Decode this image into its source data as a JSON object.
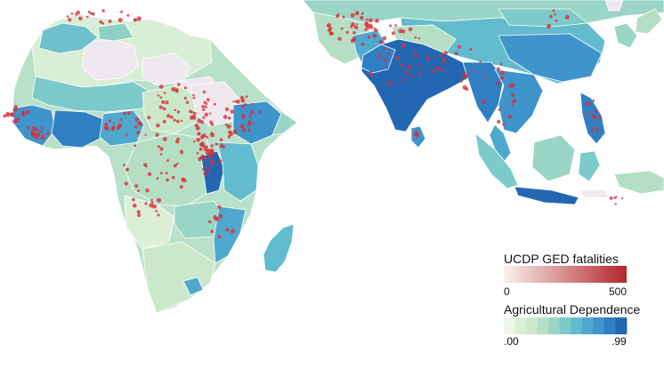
{
  "legend": {
    "fatalities": {
      "title": "UCDP GED fatalities",
      "min_label": "0",
      "max_label": "500",
      "gradient_from": "#fbf1ee",
      "gradient_to": "#b2262c"
    },
    "agri": {
      "title": "Agricultural Dependence",
      "min_label": ".00",
      "max_label": ".99",
      "steps": [
        "#eef6e6",
        "#dcefd6",
        "#cbe8cb",
        "#b5dfc4",
        "#9ad5c5",
        "#7ccac9",
        "#62bccd",
        "#4fa9cf",
        "#3f94cb",
        "#2f7fc2",
        "#2367b3"
      ]
    }
  },
  "colors": {
    "no_data": "#efe8ee",
    "border": "#ffffff",
    "event": "#d9303a"
  }
}
